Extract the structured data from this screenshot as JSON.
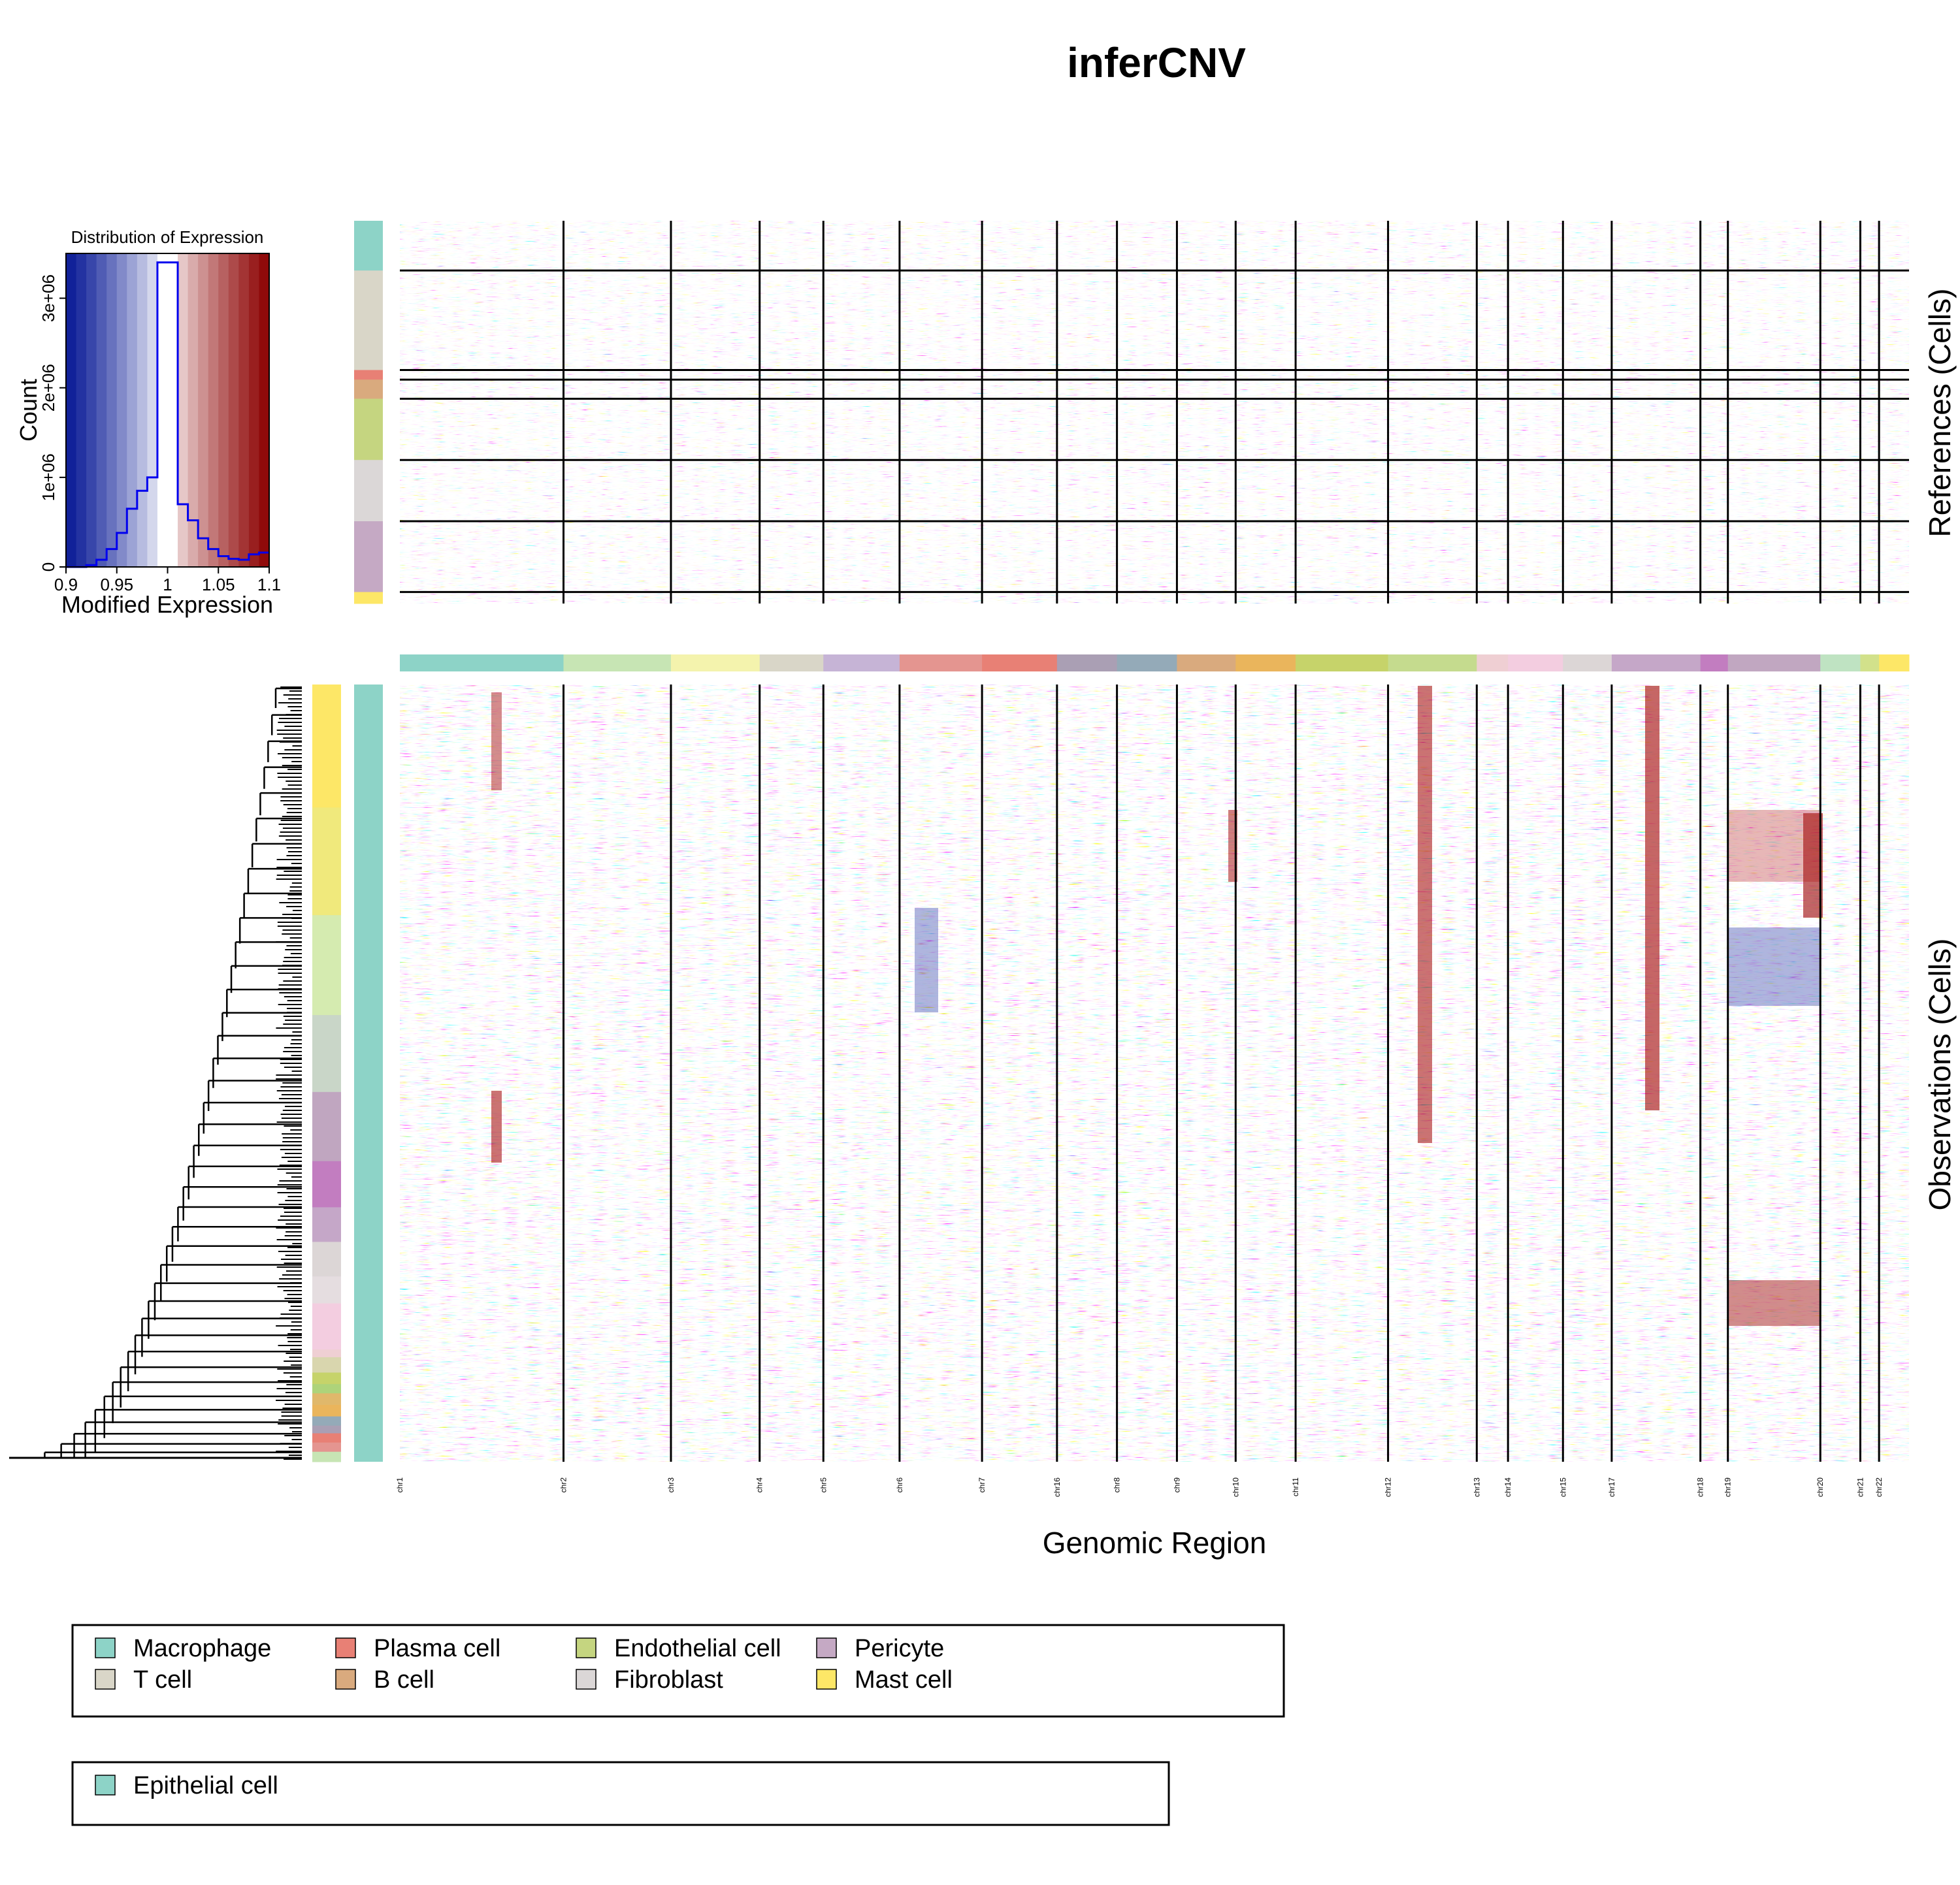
{
  "chart_data": {
    "type": "heatmap",
    "title": "inferCNV",
    "xlabel": "Genomic Region",
    "references_label": "References (Cells)",
    "observations_label": "Observations (Cells)",
    "chromosomes": [
      {
        "name": "chr1",
        "width": 131,
        "color": "#8dd3c7"
      },
      {
        "name": "chr2",
        "width": 86,
        "color": "#c7e5b4"
      },
      {
        "name": "chr3",
        "width": 71,
        "color": "#f4f3ad"
      },
      {
        "name": "chr4",
        "width": 51,
        "color": "#d9d6c8"
      },
      {
        "name": "chr5",
        "width": 61,
        "color": "#c6b4d6"
      },
      {
        "name": "chr6",
        "width": 66,
        "color": "#e49590"
      },
      {
        "name": "chr7",
        "width": 60,
        "color": "#e88075"
      },
      {
        "name": "chr16",
        "width": 48,
        "color": "#aa9fb4"
      },
      {
        "name": "chr8",
        "width": 48,
        "color": "#94aab8"
      },
      {
        "name": "chr9",
        "width": 47,
        "color": "#d9aa7e"
      },
      {
        "name": "chr10",
        "width": 48,
        "color": "#eab55c"
      },
      {
        "name": "chr11",
        "width": 74,
        "color": "#c6d36a"
      },
      {
        "name": "chr12",
        "width": 71,
        "color": "#c5db8e"
      },
      {
        "name": "chr13",
        "width": 25,
        "color": "#efcfd3"
      },
      {
        "name": "chr14",
        "width": 44,
        "color": "#f3cde0"
      },
      {
        "name": "chr15",
        "width": 39,
        "color": "#dcd6d6"
      },
      {
        "name": "chr17",
        "width": 71,
        "color": "#c5a7c8"
      },
      {
        "name": "chr18",
        "width": 22,
        "color": "#c27dc0"
      },
      {
        "name": "chr19",
        "width": 74,
        "color": "#c1a7c1"
      },
      {
        "name": "chr20",
        "width": 32,
        "color": "#bfe3c2"
      },
      {
        "name": "chr21",
        "width": 15,
        "color": "#d2e18b"
      },
      {
        "name": "chr22",
        "width": 24,
        "color": "#fde767"
      }
    ],
    "reference_groups": [
      {
        "name": "Macrophage",
        "rel": 0.13
      },
      {
        "name": "T cell",
        "rel": 0.26
      },
      {
        "name": "Plasma cell",
        "rel": 0.025
      },
      {
        "name": "B cell",
        "rel": 0.05
      },
      {
        "name": "Endothelial cell",
        "rel": 0.16
      },
      {
        "name": "Fibroblast",
        "rel": 0.16
      },
      {
        "name": "Pericyte",
        "rel": 0.185
      },
      {
        "name": "Mast cell",
        "rel": 0.03
      }
    ],
    "observation_groups": [
      {
        "name": "Epithelial cell",
        "rel": 1.0
      }
    ],
    "color_scale": {
      "min": 0.9,
      "mid": 1.0,
      "max": 1.1,
      "low_color": "#0a1b96",
      "mid_color": "#ffffff",
      "high_color": "#8b0000"
    },
    "histogram": {
      "title": "Distribution of Expression",
      "xlabel": "Modified Expression",
      "ylabel": "Count",
      "xlim": [
        0.9,
        1.1
      ],
      "ylim": [
        0,
        3500000
      ],
      "x_ticks": [
        "0.9",
        "0.95",
        "1",
        "1.05",
        "1.1"
      ],
      "y_ticks": [
        "0",
        "1e+06",
        "2e+06",
        "3e+06"
      ],
      "bin_edges": [
        0.9,
        0.91,
        0.92,
        0.93,
        0.94,
        0.95,
        0.96,
        0.97,
        0.98,
        0.99,
        1.0,
        1.01,
        1.02,
        1.03,
        1.04,
        1.05,
        1.06,
        1.07,
        1.08,
        1.09,
        1.1
      ],
      "counts": [
        0,
        0,
        20000,
        80000,
        200000,
        380000,
        650000,
        850000,
        1000000,
        3400000,
        3400000,
        700000,
        520000,
        320000,
        200000,
        120000,
        90000,
        80000,
        140000,
        160000
      ]
    },
    "legends": [
      {
        "items": [
          {
            "label": "Macrophage",
            "color": "#8dd3c7"
          },
          {
            "label": "T cell",
            "color": "#d9d6c8"
          },
          {
            "label": "Plasma cell",
            "color": "#e88075"
          },
          {
            "label": "B cell",
            "color": "#d9aa7e"
          },
          {
            "label": "Endothelial cell",
            "color": "#c5d580"
          },
          {
            "label": "Fibroblast",
            "color": "#dbd7d7"
          },
          {
            "label": "Pericyte",
            "color": "#c5a9c4"
          },
          {
            "label": "Mast cell",
            "color": "#fde767"
          }
        ]
      },
      {
        "items": [
          {
            "label": "Epithelial cell",
            "color": "#8dd3c7"
          }
        ]
      }
    ]
  },
  "observation_cluster_colors": [
    "#fde767",
    "#f0e97c",
    "#d5ebb0",
    "#c9d6c8",
    "#c0a6c0",
    "#c27dc0",
    "#c5a7c8",
    "#dcd6d6",
    "#e5dde0",
    "#f3cde0",
    "#efcfd3",
    "#d9d6ae",
    "#c6d36a",
    "#aed37a",
    "#e0b86b",
    "#eab55c",
    "#94aab8",
    "#aa9fb4",
    "#e88075",
    "#e49590",
    "#c7e5b4"
  ]
}
